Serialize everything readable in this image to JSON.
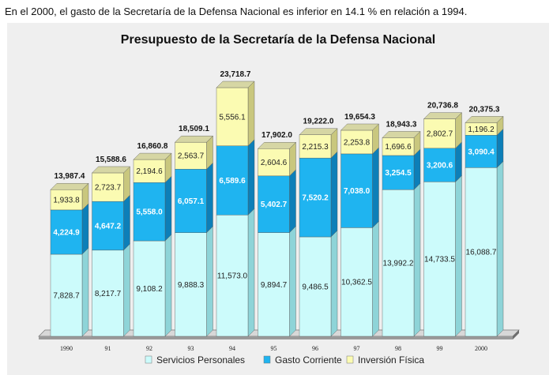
{
  "caption": "En el 2000, el gasto de la Secretaría de la Defensa Nacional es inferior en 14.1 % en relación a 1994.",
  "chart_data": {
    "type": "bar",
    "stacked": true,
    "title": "Presupuesto de la Secretaría de la Defensa Nacional",
    "xlabel": "",
    "ylabel": "",
    "ylim": [
      0,
      25000
    ],
    "grid": false,
    "legend_position": "bottom",
    "categories": [
      "1990",
      "91",
      "92",
      "93",
      "94",
      "95",
      "96",
      "97",
      "98",
      "99",
      "2000"
    ],
    "series": [
      {
        "name": "Servicios Personales",
        "color": "#ccfbfb",
        "side": "#8ed4d8",
        "top": "#e6ffff",
        "label_color": "#222222",
        "values": [
          7828.7,
          8217.7,
          9108.2,
          9888.3,
          11573.0,
          9894.7,
          9486.5,
          10362.5,
          13992.2,
          14733.5,
          16088.7
        ],
        "labels": [
          "7,828.7",
          "8,217.7",
          "9,108.2",
          "9,888.3",
          "11,573.0",
          "9,894.7",
          "9,486.5",
          "10,362.5",
          "13,992.2",
          "14,733.5",
          "16,088.7"
        ]
      },
      {
        "name": "Gasto Corriente",
        "color": "#1fb4f0",
        "side": "#0d7fb8",
        "top": "#58cdf6",
        "label_color": "#ffffff",
        "values": [
          4224.9,
          4647.2,
          5558.0,
          6057.1,
          6589.6,
          5402.7,
          7520.2,
          7038.0,
          3254.5,
          3200.6,
          3090.4
        ],
        "labels": [
          "4,224.9",
          "4,647.2",
          "5,558.0",
          "6,057.1",
          "6,589.6",
          "5,402.7",
          "7,520.2",
          "7,038.0",
          "3,254.5",
          "3,200.6",
          "3,090.4"
        ]
      },
      {
        "name": "Inversión Física",
        "color": "#fbfbb2",
        "side": "#c9c77e",
        "top": "#d6d6a4",
        "label_color": "#222222",
        "values": [
          1933.8,
          2723.7,
          2194.6,
          2563.7,
          5556.1,
          2604.6,
          2215.3,
          2253.8,
          1696.6,
          2802.7,
          1196.2
        ],
        "labels": [
          "1,933.8",
          "2,723.7",
          "2,194.6",
          "2,563.7",
          "5,556.1",
          "2,604.6",
          "2,215.3",
          "2,253.8",
          "1,696.6",
          "2,802.7",
          "1,196.2"
        ]
      }
    ],
    "totals": [
      13987.4,
      15588.6,
      16860.8,
      18509.1,
      23718.7,
      17902.0,
      19222.0,
      19654.3,
      18943.3,
      20736.8,
      20375.3
    ],
    "total_labels": [
      "13,987.4",
      "15,588.6",
      "16,860.8",
      "18,509.1",
      "23,718.7",
      "17,902.0",
      "19,222.0",
      "19,654.3",
      "18,943.3",
      "20,736.8",
      "20,375.3"
    ]
  }
}
